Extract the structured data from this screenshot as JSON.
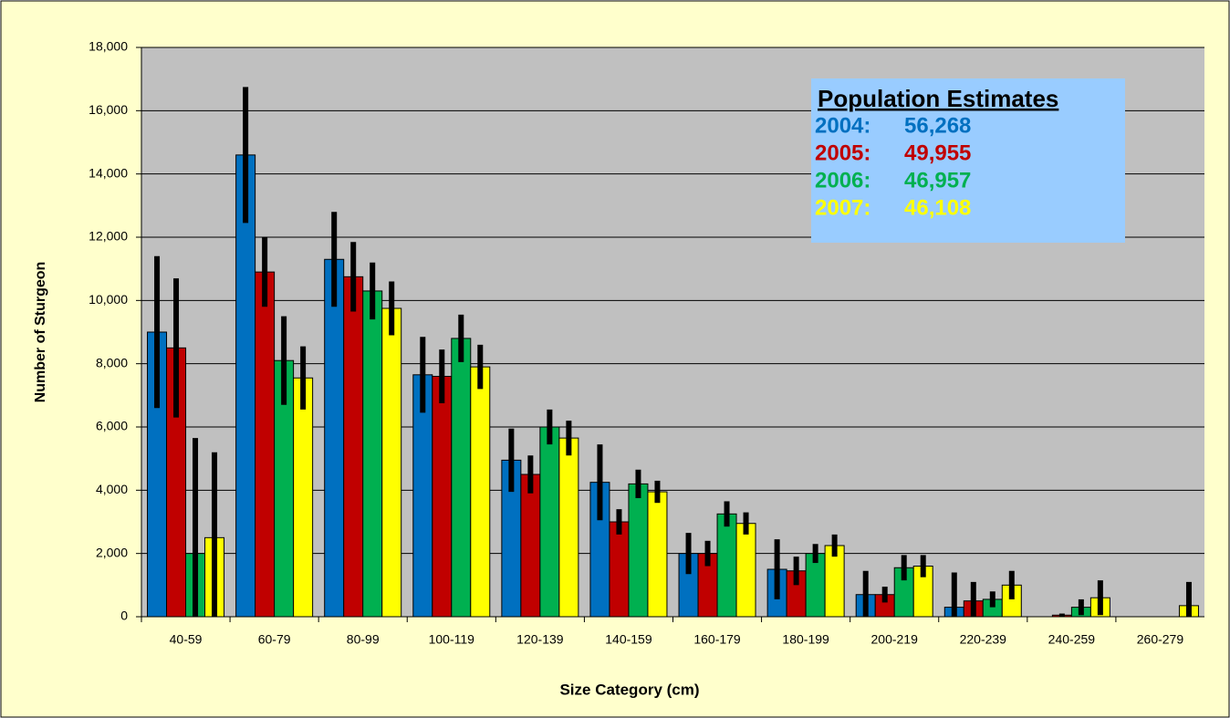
{
  "chart_data": {
    "type": "bar",
    "x_label": "Size Category (cm)",
    "y_label": "Number of Sturgeon",
    "categories": [
      "40-59",
      "60-79",
      "80-99",
      "100-119",
      "120-139",
      "140-159",
      "160-179",
      "180-199",
      "200-219",
      "220-239",
      "240-259",
      "260-279"
    ],
    "series": [
      {
        "name": "2004",
        "color": "#0070c0",
        "values": [
          9000,
          14600,
          11300,
          7650,
          4950,
          4250,
          2000,
          1500,
          700,
          300,
          0,
          0
        ],
        "errors": [
          2400,
          2150,
          1500,
          1200,
          1000,
          1200,
          650,
          950,
          750,
          1100,
          0,
          0
        ]
      },
      {
        "name": "2005",
        "color": "#c00000",
        "values": [
          8500,
          10900,
          10750,
          7600,
          4500,
          3000,
          2000,
          1450,
          700,
          500,
          50,
          0
        ],
        "errors": [
          2200,
          1100,
          1100,
          850,
          600,
          400,
          400,
          450,
          250,
          600,
          50,
          0
        ]
      },
      {
        "name": "2006",
        "color": "#00b050",
        "values": [
          2000,
          8100,
          10300,
          8800,
          6000,
          4200,
          3250,
          2000,
          1550,
          550,
          300,
          0
        ],
        "errors": [
          3650,
          1400,
          900,
          750,
          550,
          450,
          400,
          300,
          400,
          250,
          250,
          0
        ]
      },
      {
        "name": "2007",
        "color": "#ffff00",
        "values": [
          2500,
          7550,
          9750,
          7900,
          5650,
          3950,
          2950,
          2250,
          1600,
          1000,
          600,
          350
        ],
        "errors": [
          2700,
          1000,
          850,
          700,
          550,
          350,
          350,
          350,
          350,
          450,
          550,
          750
        ]
      }
    ],
    "legend_box": {
      "title": "Population Estimates",
      "entries": [
        {
          "label": "2004:",
          "total": "56,268"
        },
        {
          "label": "2005:",
          "total": "49,955"
        },
        {
          "label": "2006:",
          "total": "46,957"
        },
        {
          "label": "2007:",
          "total": "46,108"
        }
      ]
    },
    "ylim": [
      0,
      18000
    ],
    "yticks": [
      0,
      {
        "value": 2000,
        "label": "2,000"
      },
      {
        "value": 4000,
        "label": "4,000"
      },
      {
        "value": 6000,
        "label": "6,000"
      },
      {
        "value": 8000,
        "label": "8,000"
      },
      {
        "value": 10000,
        "label": "10,000"
      },
      {
        "value": 12000,
        "label": "12,000"
      },
      {
        "value": 14000,
        "label": "14,000"
      },
      {
        "value": 16000,
        "label": "16,000"
      },
      {
        "value": 18000,
        "label": "18,000"
      }
    ],
    "grid": true
  }
}
